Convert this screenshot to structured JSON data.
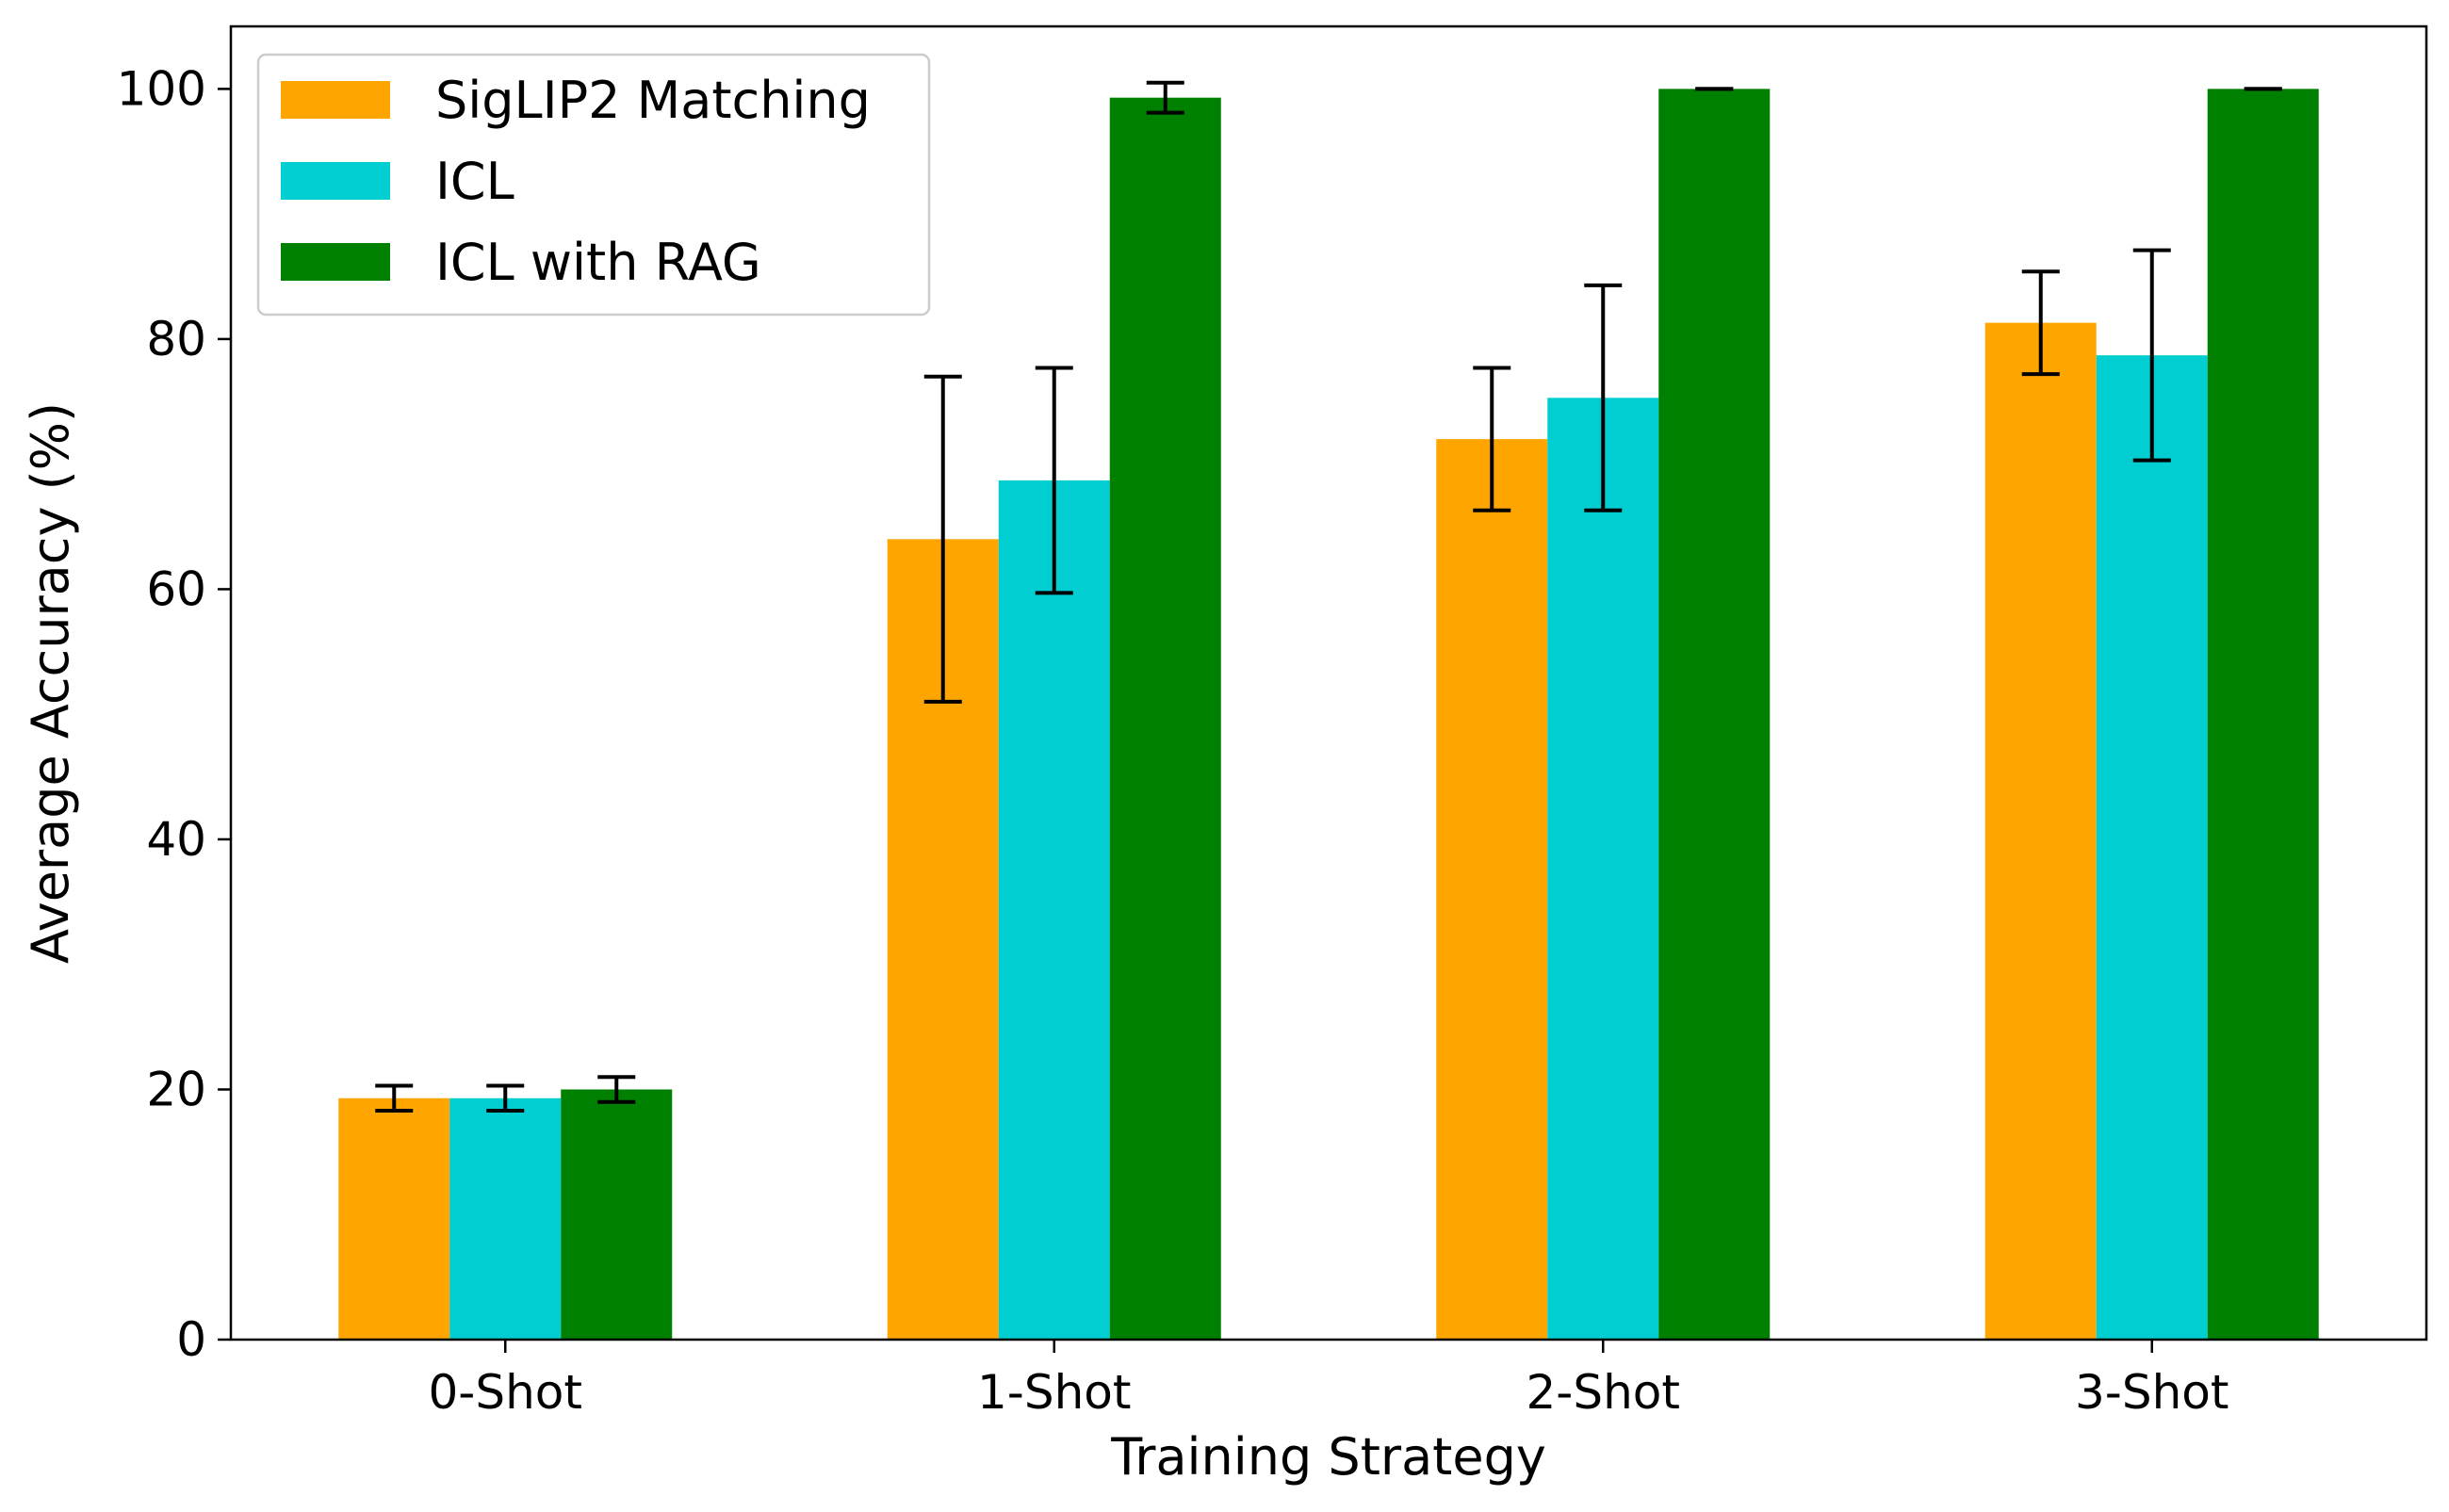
{
  "chart_data": {
    "type": "bar",
    "title": "",
    "xlabel": "Training Strategy",
    "ylabel": "Average Accuracy (%)",
    "categories": [
      "0-Shot",
      "1-Shot",
      "2-Shot",
      "3-Shot"
    ],
    "ylim": [
      0,
      105
    ],
    "yticks": [
      0,
      20,
      40,
      60,
      80,
      100
    ],
    "grid": false,
    "legend_position": "top-left",
    "series": [
      {
        "name": "SigLIP2 Matching",
        "color": "#FFA500",
        "values": [
          19.3,
          64.0,
          72.0,
          81.3
        ],
        "errors": [
          1.0,
          13.0,
          5.7,
          4.1
        ]
      },
      {
        "name": "ICL",
        "color": "#00CED1",
        "values": [
          19.3,
          68.7,
          75.3,
          78.7
        ],
        "errors": [
          1.0,
          9.0,
          9.0,
          8.4
        ]
      },
      {
        "name": "ICL with RAG",
        "color": "#008000",
        "values": [
          20.0,
          99.3,
          100.0,
          100.0
        ],
        "errors": [
          1.0,
          1.2,
          0.0,
          0.0
        ]
      }
    ]
  }
}
